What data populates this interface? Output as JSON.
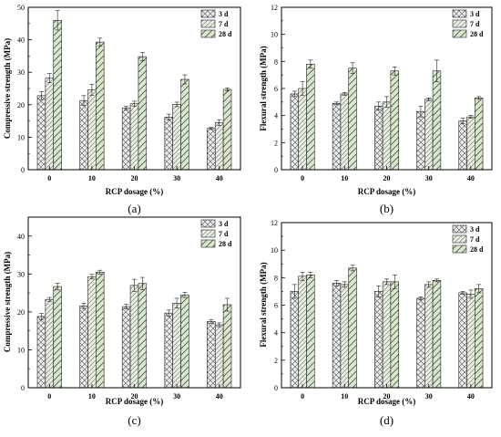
{
  "colors": {
    "series": [
      "#ececec",
      "#e8f0e2",
      "#d8eacb"
    ],
    "ink": "#000000"
  },
  "chart_data": [
    {
      "panel": "(a)",
      "type": "bar",
      "categories": [
        "0",
        "10",
        "20",
        "30",
        "40"
      ],
      "xlabel": "RCP dosage (%)",
      "ylabel": "Compressive strength (MPa)",
      "ylim": [
        0,
        50
      ],
      "yticks": [
        "0",
        "10",
        "20",
        "30",
        "40",
        "50"
      ],
      "legend_position": "top-right",
      "series": [
        {
          "name": "3 d",
          "values": [
            22.8,
            21.3,
            19.0,
            16.2,
            12.7
          ],
          "errors": [
            1.2,
            1.5,
            0.6,
            0.9,
            0.3
          ]
        },
        {
          "name": "7 d",
          "values": [
            28.2,
            24.6,
            20.3,
            20.1,
            14.5
          ],
          "errors": [
            1.4,
            1.7,
            0.8,
            0.7,
            0.9
          ]
        },
        {
          "name": "28 d",
          "values": [
            46.0,
            39.3,
            34.8,
            27.8,
            24.7
          ],
          "errors": [
            3.0,
            1.2,
            1.3,
            1.4,
            0.5
          ]
        }
      ]
    },
    {
      "panel": "(b)",
      "type": "bar",
      "categories": [
        "0",
        "10",
        "20",
        "30",
        "40"
      ],
      "xlabel": "RCP dosage (%)",
      "ylabel": "Flexural strength (MPa)",
      "ylim": [
        0,
        12
      ],
      "yticks": [
        "0",
        "2",
        "4",
        "6",
        "8",
        "10",
        "12"
      ],
      "legend_position": "top-right",
      "series": [
        {
          "name": "3 d",
          "values": [
            5.6,
            4.9,
            4.7,
            4.3,
            3.6
          ],
          "errors": [
            0.2,
            0.1,
            0.3,
            0.4,
            0.2
          ]
        },
        {
          "name": "7 d",
          "values": [
            6.0,
            5.6,
            5.0,
            5.2,
            3.9
          ],
          "errors": [
            0.5,
            0.1,
            0.4,
            0.1,
            0.1
          ]
        },
        {
          "name": "28 d",
          "values": [
            7.8,
            7.5,
            7.3,
            7.3,
            5.3
          ],
          "errors": [
            0.3,
            0.4,
            0.3,
            0.8,
            0.1
          ]
        }
      ]
    },
    {
      "panel": "(c)",
      "type": "bar",
      "categories": [
        "0",
        "10",
        "20",
        "30",
        "40"
      ],
      "xlabel": "RCP dosage (%)",
      "ylabel": "Compressive strength (MPa)",
      "ylim": [
        0,
        45
      ],
      "yticks": [
        "0",
        "10",
        "20",
        "30",
        "40"
      ],
      "legend_position": "top-right",
      "series": [
        {
          "name": "3 d",
          "values": [
            18.8,
            21.6,
            21.4,
            19.7,
            17.5
          ],
          "errors": [
            0.8,
            0.7,
            0.6,
            0.8,
            0.5
          ]
        },
        {
          "name": "7 d",
          "values": [
            23.3,
            29.3,
            27.0,
            22.3,
            16.6
          ],
          "errors": [
            0.5,
            0.6,
            1.6,
            1.3,
            0.5
          ]
        },
        {
          "name": "28 d",
          "values": [
            26.7,
            30.5,
            27.5,
            24.5,
            21.9
          ],
          "errors": [
            0.9,
            0.5,
            1.6,
            0.7,
            1.7
          ]
        }
      ]
    },
    {
      "panel": "(d)",
      "type": "bar",
      "categories": [
        "0",
        "10",
        "20",
        "30",
        "40"
      ],
      "xlabel": "RCP dosage (%)",
      "ylabel": "Flexural strength (MPa)",
      "ylim": [
        0,
        12
      ],
      "yticks": [
        "0",
        "2",
        "4",
        "6",
        "8",
        "10",
        "12"
      ],
      "legend_position": "top-right",
      "series": [
        {
          "name": "3 d",
          "values": [
            7.0,
            7.6,
            7.0,
            6.5,
            6.9
          ],
          "errors": [
            0.5,
            0.2,
            0.4,
            0.1,
            0.1
          ]
        },
        {
          "name": "7 d",
          "values": [
            8.1,
            7.5,
            7.7,
            7.5,
            6.8
          ],
          "errors": [
            0.3,
            0.2,
            0.2,
            0.2,
            0.3
          ]
        },
        {
          "name": "28 d",
          "values": [
            8.2,
            8.7,
            7.7,
            7.8,
            7.2
          ],
          "errors": [
            0.2,
            0.2,
            0.5,
            0.1,
            0.3
          ]
        }
      ]
    }
  ]
}
